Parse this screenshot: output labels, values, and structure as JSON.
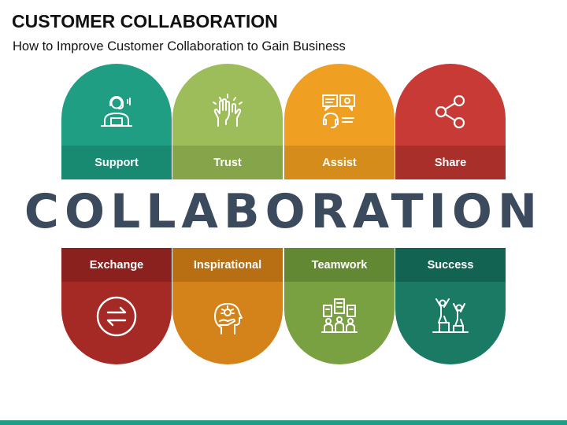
{
  "header": {
    "title": "CUSTOMER COLLABORATION",
    "subtitle": "How to Improve Customer Collaboration to Gain Business"
  },
  "center_word": "COLLABORATION",
  "top_cards": [
    {
      "label": "Support",
      "icon": "headset-agent-icon",
      "color": "#1f9e84",
      "band_color": "#188a72"
    },
    {
      "label": "Trust",
      "icon": "raised-hands-icon",
      "color": "#9dbd5b",
      "band_color": "#86a54a"
    },
    {
      "label": "Assist",
      "icon": "support-chat-icon",
      "color": "#efa022",
      "band_color": "#d68c1a"
    },
    {
      "label": "Share",
      "icon": "share-icon",
      "color": "#c73a35",
      "band_color": "#a92f2b"
    }
  ],
  "bottom_cards": [
    {
      "label": "Exchange",
      "icon": "exchange-arrows-icon",
      "color": "#a52a26",
      "band_color": "#8a211e"
    },
    {
      "label": "Inspirational",
      "icon": "inspiration-head-icon",
      "color": "#d4831b",
      "band_color": "#b86f14"
    },
    {
      "label": "Teamwork",
      "icon": "team-building-icon",
      "color": "#79a041",
      "band_color": "#638834"
    },
    {
      "label": "Success",
      "icon": "celebrating-people-icon",
      "color": "#1a7a64",
      "band_color": "#136352"
    }
  ],
  "accent_color": "#1e9e84"
}
